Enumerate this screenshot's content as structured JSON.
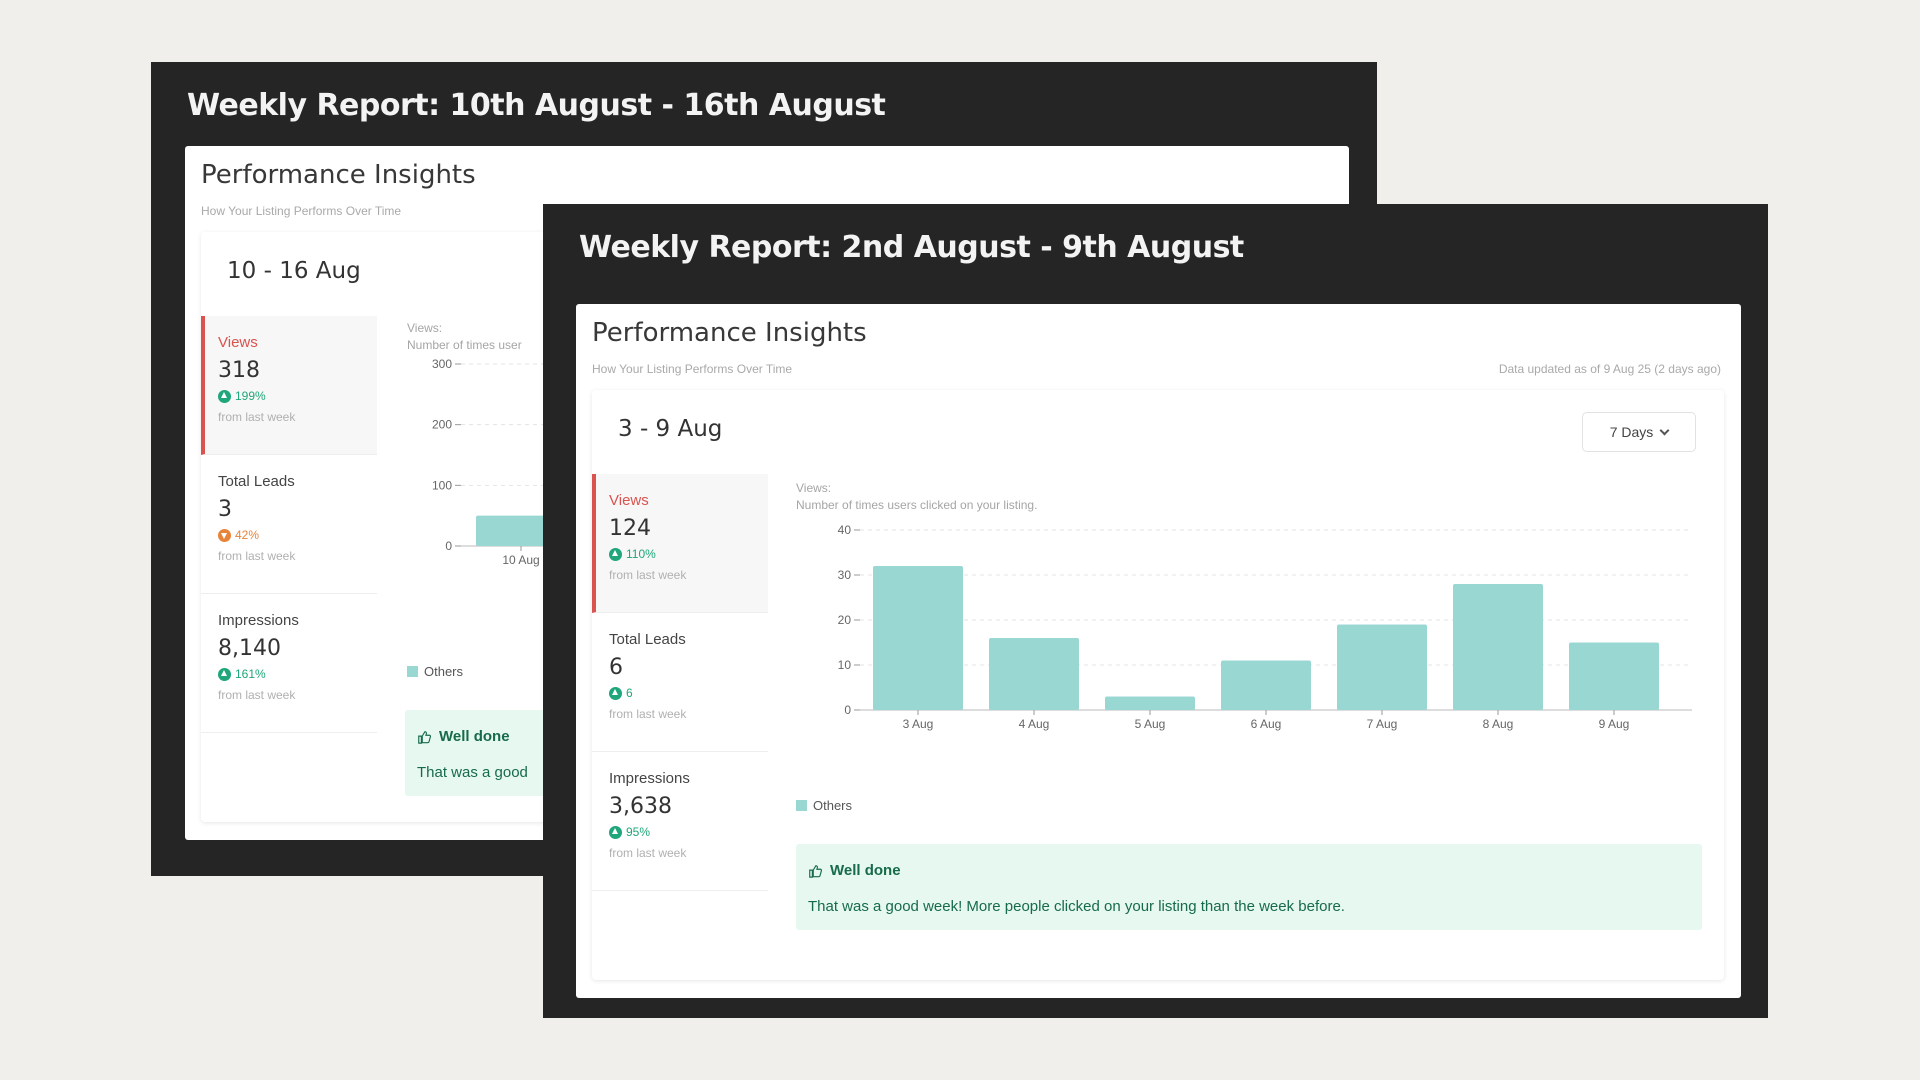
{
  "colors": {
    "accent_red": "#d9534f",
    "bar": "#99d7d3",
    "up": "#1fa67a",
    "down": "#e8833a",
    "banner_bg": "#e6f8ef"
  },
  "back_report": {
    "title": "Weekly Report: 10th August - 16th August",
    "panel_title": "Performance Insights",
    "panel_subtitle": "How Your Listing Performs Over Time",
    "date_range": "10 - 16 Aug",
    "metrics": [
      {
        "label": "Views",
        "value": "318",
        "change": "199%",
        "direction": "up",
        "note": "from last week"
      },
      {
        "label": "Total Leads",
        "value": "3",
        "change": "42%",
        "direction": "down",
        "note": "from last week"
      },
      {
        "label": "Impressions",
        "value": "8,140",
        "change": "161%",
        "direction": "up",
        "note": "from last week"
      }
    ],
    "chart_label_1": "Views:",
    "chart_label_2": "Number of times user",
    "legend": "Others",
    "banner_title": "Well done",
    "banner_text": "That was a good"
  },
  "front_report": {
    "title": "Weekly Report: 2nd August - 9th August",
    "panel_title": "Performance Insights",
    "panel_subtitle": "How Your Listing Performs Over Time",
    "data_updated": "Data updated as of 9 Aug 25 (2 days ago)",
    "date_range": "3 - 9 Aug",
    "period_select": "7 Days",
    "metrics": [
      {
        "label": "Views",
        "value": "124",
        "change": "110%",
        "direction": "up",
        "note": "from last week"
      },
      {
        "label": "Total Leads",
        "value": "6",
        "change": "6",
        "direction": "up",
        "note": "from last week"
      },
      {
        "label": "Impressions",
        "value": "3,638",
        "change": "95%",
        "direction": "up",
        "note": "from last week"
      }
    ],
    "chart_label_1": "Views:",
    "chart_label_2": "Number of times users clicked on your listing.",
    "legend": "Others",
    "banner_title": "Well done",
    "banner_text": "That was a good week! More people clicked on your listing than the week before."
  },
  "chart_data": [
    {
      "type": "bar",
      "categories": [
        "3 Aug",
        "4 Aug",
        "5 Aug",
        "6 Aug",
        "7 Aug",
        "8 Aug",
        "9 Aug"
      ],
      "series": [
        {
          "name": "Others",
          "values": [
            32,
            16,
            3,
            11,
            19,
            28,
            15
          ]
        }
      ],
      "ylim": [
        0,
        40
      ],
      "yticks": [
        0,
        10,
        20,
        30,
        40
      ],
      "grid": true,
      "legend": "bottom-left"
    },
    {
      "type": "bar",
      "categories": [
        "10 Aug"
      ],
      "series": [
        {
          "name": "Others",
          "values": [
            50
          ]
        }
      ],
      "ylim": [
        0,
        300
      ],
      "yticks": [
        0,
        100,
        200,
        300
      ],
      "grid": true,
      "legend": "bottom-left"
    }
  ]
}
